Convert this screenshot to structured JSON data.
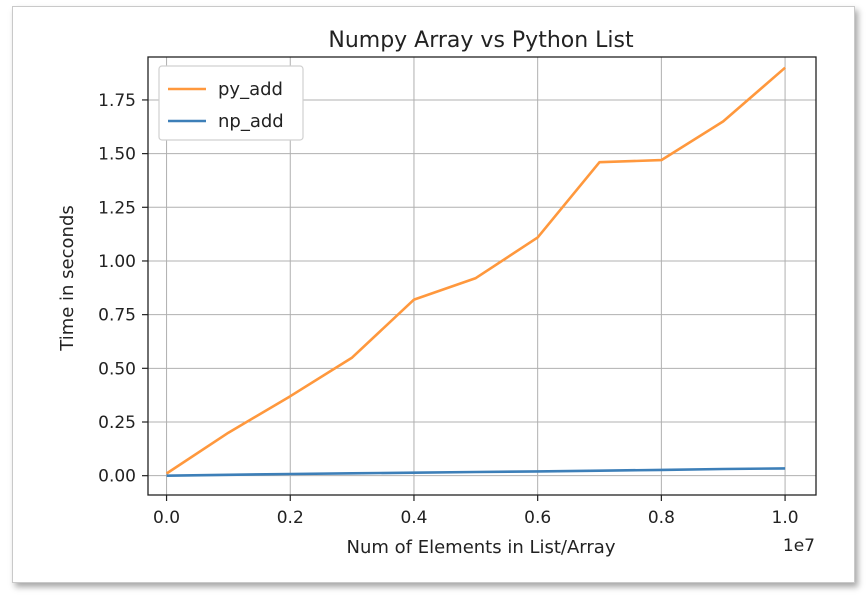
{
  "chart_data": {
    "type": "line",
    "title": "Numpy Array vs Python List",
    "xlabel": "Num of Elements in List/Array",
    "ylabel": "Time in seconds",
    "x_offset_label": "1e7",
    "x": [
      0,
      1000000,
      2000000,
      3000000,
      4000000,
      5000000,
      6000000,
      7000000,
      8000000,
      9000000,
      10000000
    ],
    "xlim": [
      -300000,
      10500000
    ],
    "ylim": [
      -0.09,
      1.95
    ],
    "x_ticks": [
      0,
      2000000,
      4000000,
      6000000,
      8000000,
      10000000
    ],
    "x_tick_labels": [
      "0.0",
      "0.2",
      "0.4",
      "0.6",
      "0.8",
      "1.0"
    ],
    "y_ticks": [
      0,
      0.25,
      0.5,
      0.75,
      1.0,
      1.25,
      1.5,
      1.75
    ],
    "y_tick_labels": [
      "0.00",
      "0.25",
      "0.50",
      "0.75",
      "1.00",
      "1.25",
      "1.50",
      "1.75"
    ],
    "grid": true,
    "legend_position": "top-left",
    "series": [
      {
        "name": "py_add",
        "color": "#ff983d",
        "values": [
          0.01,
          0.2,
          0.37,
          0.55,
          0.82,
          0.92,
          1.11,
          1.46,
          1.47,
          1.65,
          1.9
        ]
      },
      {
        "name": "np_add",
        "color": "#3d7fb8",
        "values": [
          0.0,
          0.004,
          0.008,
          0.011,
          0.014,
          0.017,
          0.02,
          0.023,
          0.027,
          0.031,
          0.034
        ]
      }
    ]
  }
}
